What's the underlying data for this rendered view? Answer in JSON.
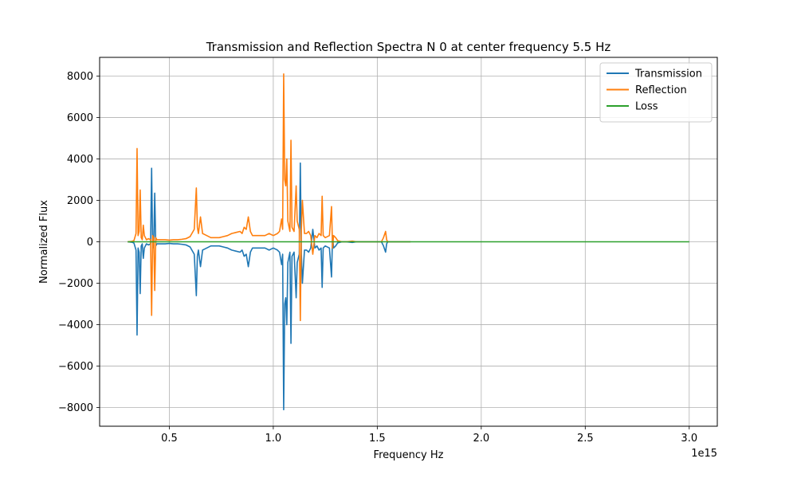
{
  "chart_data": {
    "type": "line",
    "title": "Transmission and Reflection Spectra N 0 at center frequency 5.5 Hz",
    "xlabel": "Frequency Hz",
    "ylabel": "Normalized Flux",
    "x_offset_label": "1e15",
    "xlim": [
      0.165,
      3.135
    ],
    "ylim": [
      -8900,
      8900
    ],
    "x_ticks": [
      0.5,
      1.0,
      1.5,
      2.0,
      2.5,
      3.0
    ],
    "x_tick_labels": [
      "0.5",
      "1.0",
      "1.5",
      "2.0",
      "2.5",
      "3.0"
    ],
    "y_ticks": [
      -8000,
      -6000,
      -4000,
      -2000,
      0,
      2000,
      4000,
      6000,
      8000
    ],
    "y_tick_labels": [
      "−8000",
      "−6000",
      "−4000",
      "−2000",
      "0",
      "2000",
      "4000",
      "6000",
      "8000"
    ],
    "grid": true,
    "legend_position": "top-right",
    "series": [
      {
        "name": "Transmission",
        "color": "#1f77b4",
        "points": [
          [
            0.3,
            0
          ],
          [
            0.32,
            -20
          ],
          [
            0.33,
            -60
          ],
          [
            0.34,
            -400
          ],
          [
            0.345,
            -4500
          ],
          [
            0.35,
            -300
          ],
          [
            0.355,
            -500
          ],
          [
            0.36,
            -2500
          ],
          [
            0.365,
            -200
          ],
          [
            0.37,
            -100
          ],
          [
            0.375,
            -800
          ],
          [
            0.38,
            -300
          ],
          [
            0.385,
            -200
          ],
          [
            0.39,
            -100
          ],
          [
            0.4,
            -150
          ],
          [
            0.41,
            -100
          ],
          [
            0.415,
            3550
          ],
          [
            0.42,
            -300
          ],
          [
            0.425,
            -200
          ],
          [
            0.43,
            2350
          ],
          [
            0.435,
            -200
          ],
          [
            0.44,
            -100
          ],
          [
            0.46,
            -100
          ],
          [
            0.48,
            -100
          ],
          [
            0.5,
            -80
          ],
          [
            0.52,
            -100
          ],
          [
            0.54,
            -100
          ],
          [
            0.56,
            -120
          ],
          [
            0.58,
            -150
          ],
          [
            0.6,
            -250
          ],
          [
            0.62,
            -600
          ],
          [
            0.63,
            -2600
          ],
          [
            0.635,
            -700
          ],
          [
            0.64,
            -400
          ],
          [
            0.65,
            -1200
          ],
          [
            0.66,
            -400
          ],
          [
            0.68,
            -300
          ],
          [
            0.7,
            -200
          ],
          [
            0.72,
            -200
          ],
          [
            0.74,
            -200
          ],
          [
            0.76,
            -250
          ],
          [
            0.78,
            -300
          ],
          [
            0.8,
            -400
          ],
          [
            0.82,
            -450
          ],
          [
            0.84,
            -500
          ],
          [
            0.85,
            -400
          ],
          [
            0.86,
            -700
          ],
          [
            0.87,
            -600
          ],
          [
            0.88,
            -1200
          ],
          [
            0.89,
            -500
          ],
          [
            0.9,
            -300
          ],
          [
            0.92,
            -300
          ],
          [
            0.94,
            -300
          ],
          [
            0.96,
            -300
          ],
          [
            0.98,
            -400
          ],
          [
            1.0,
            -300
          ],
          [
            1.02,
            -400
          ],
          [
            1.03,
            -500
          ],
          [
            1.04,
            -1100
          ],
          [
            1.045,
            -600
          ],
          [
            1.05,
            -8100
          ],
          [
            1.055,
            -3000
          ],
          [
            1.06,
            -2700
          ],
          [
            1.065,
            -4000
          ],
          [
            1.07,
            -1000
          ],
          [
            1.08,
            -500
          ],
          [
            1.085,
            -4900
          ],
          [
            1.09,
            -700
          ],
          [
            1.1,
            -500
          ],
          [
            1.11,
            -2700
          ],
          [
            1.115,
            -1000
          ],
          [
            1.12,
            -800
          ],
          [
            1.125,
            -600
          ],
          [
            1.13,
            3800
          ],
          [
            1.135,
            -600
          ],
          [
            1.14,
            -2000
          ],
          [
            1.15,
            -400
          ],
          [
            1.16,
            -400
          ],
          [
            1.17,
            -500
          ],
          [
            1.18,
            -300
          ],
          [
            1.19,
            600
          ],
          [
            1.2,
            -300
          ],
          [
            1.21,
            -200
          ],
          [
            1.22,
            -400
          ],
          [
            1.23,
            -300
          ],
          [
            1.235,
            -2200
          ],
          [
            1.24,
            -300
          ],
          [
            1.25,
            -200
          ],
          [
            1.27,
            -300
          ],
          [
            1.28,
            -1700
          ],
          [
            1.285,
            300
          ],
          [
            1.29,
            -300
          ],
          [
            1.3,
            -200
          ],
          [
            1.31,
            -50
          ],
          [
            1.33,
            0
          ],
          [
            1.35,
            0
          ],
          [
            1.38,
            -30
          ],
          [
            1.4,
            0
          ],
          [
            1.45,
            0
          ],
          [
            1.5,
            0
          ],
          [
            1.52,
            0
          ],
          [
            1.53,
            -200
          ],
          [
            1.54,
            -500
          ],
          [
            1.545,
            -100
          ],
          [
            1.55,
            0
          ],
          [
            1.6,
            0
          ],
          [
            1.65,
            0
          ],
          [
            1.66,
            0
          ]
        ]
      },
      {
        "name": "Reflection",
        "color": "#ff7f0e",
        "points": [
          [
            0.3,
            0
          ],
          [
            0.32,
            20
          ],
          [
            0.33,
            60
          ],
          [
            0.34,
            400
          ],
          [
            0.345,
            4500
          ],
          [
            0.35,
            300
          ],
          [
            0.355,
            500
          ],
          [
            0.36,
            2500
          ],
          [
            0.365,
            200
          ],
          [
            0.37,
            100
          ],
          [
            0.375,
            800
          ],
          [
            0.38,
            300
          ],
          [
            0.385,
            200
          ],
          [
            0.39,
            100
          ],
          [
            0.4,
            150
          ],
          [
            0.41,
            100
          ],
          [
            0.415,
            -3550
          ],
          [
            0.42,
            300
          ],
          [
            0.425,
            200
          ],
          [
            0.43,
            -2350
          ],
          [
            0.435,
            200
          ],
          [
            0.44,
            100
          ],
          [
            0.46,
            100
          ],
          [
            0.48,
            100
          ],
          [
            0.5,
            80
          ],
          [
            0.52,
            100
          ],
          [
            0.54,
            100
          ],
          [
            0.56,
            120
          ],
          [
            0.58,
            150
          ],
          [
            0.6,
            250
          ],
          [
            0.62,
            600
          ],
          [
            0.63,
            2600
          ],
          [
            0.635,
            700
          ],
          [
            0.64,
            400
          ],
          [
            0.65,
            1200
          ],
          [
            0.66,
            400
          ],
          [
            0.68,
            300
          ],
          [
            0.7,
            200
          ],
          [
            0.72,
            200
          ],
          [
            0.74,
            200
          ],
          [
            0.76,
            250
          ],
          [
            0.78,
            300
          ],
          [
            0.8,
            400
          ],
          [
            0.82,
            450
          ],
          [
            0.84,
            500
          ],
          [
            0.85,
            400
          ],
          [
            0.86,
            700
          ],
          [
            0.87,
            600
          ],
          [
            0.88,
            1200
          ],
          [
            0.89,
            500
          ],
          [
            0.9,
            300
          ],
          [
            0.92,
            300
          ],
          [
            0.94,
            300
          ],
          [
            0.96,
            300
          ],
          [
            0.98,
            400
          ],
          [
            1.0,
            300
          ],
          [
            1.02,
            400
          ],
          [
            1.03,
            500
          ],
          [
            1.04,
            1100
          ],
          [
            1.045,
            600
          ],
          [
            1.05,
            8100
          ],
          [
            1.055,
            3000
          ],
          [
            1.06,
            2700
          ],
          [
            1.065,
            4000
          ],
          [
            1.07,
            1000
          ],
          [
            1.08,
            500
          ],
          [
            1.085,
            4900
          ],
          [
            1.09,
            700
          ],
          [
            1.1,
            500
          ],
          [
            1.11,
            2700
          ],
          [
            1.115,
            1000
          ],
          [
            1.12,
            800
          ],
          [
            1.125,
            600
          ],
          [
            1.13,
            -3800
          ],
          [
            1.135,
            600
          ],
          [
            1.14,
            2000
          ],
          [
            1.15,
            400
          ],
          [
            1.16,
            400
          ],
          [
            1.17,
            500
          ],
          [
            1.18,
            300
          ],
          [
            1.19,
            -600
          ],
          [
            1.2,
            300
          ],
          [
            1.21,
            200
          ],
          [
            1.22,
            400
          ],
          [
            1.23,
            300
          ],
          [
            1.235,
            2200
          ],
          [
            1.24,
            300
          ],
          [
            1.25,
            200
          ],
          [
            1.27,
            300
          ],
          [
            1.28,
            1700
          ],
          [
            1.285,
            -300
          ],
          [
            1.29,
            300
          ],
          [
            1.3,
            200
          ],
          [
            1.31,
            50
          ],
          [
            1.33,
            0
          ],
          [
            1.35,
            0
          ],
          [
            1.38,
            30
          ],
          [
            1.4,
            0
          ],
          [
            1.45,
            0
          ],
          [
            1.5,
            0
          ],
          [
            1.52,
            0
          ],
          [
            1.53,
            200
          ],
          [
            1.54,
            500
          ],
          [
            1.545,
            100
          ],
          [
            1.55,
            0
          ],
          [
            1.6,
            0
          ],
          [
            1.65,
            0
          ],
          [
            1.66,
            0
          ]
        ]
      },
      {
        "name": "Loss",
        "color": "#2ca02c",
        "points": [
          [
            0.3,
            0
          ],
          [
            0.5,
            0
          ],
          [
            1.0,
            0
          ],
          [
            1.5,
            0
          ],
          [
            2.0,
            0
          ],
          [
            2.5,
            0
          ],
          [
            3.0,
            0
          ]
        ]
      }
    ]
  }
}
